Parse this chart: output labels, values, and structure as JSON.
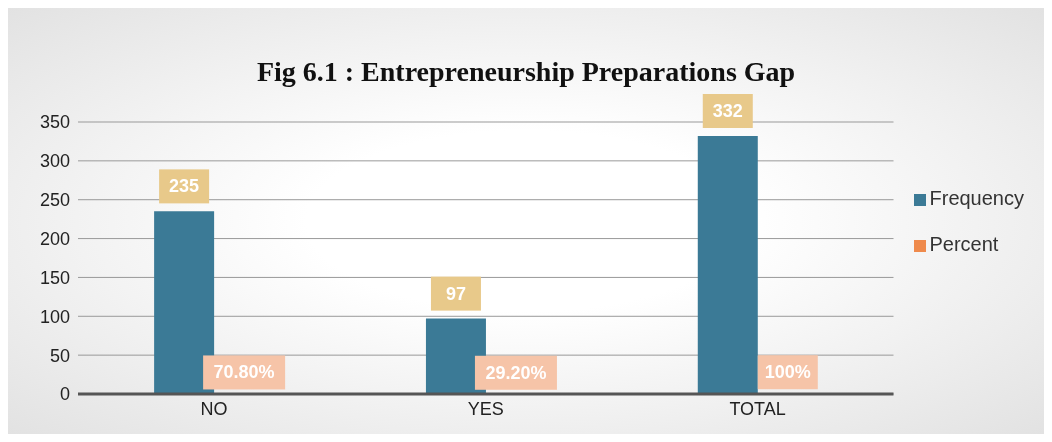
{
  "chart_data": {
    "type": "bar",
    "title": "Fig 6.1  : Entrepreneurship Preparations Gap",
    "categories": [
      "NO",
      "YES",
      "TOTAL"
    ],
    "series": [
      {
        "name": "Frequency",
        "color": "#3b7a96",
        "values": [
          235,
          97,
          332
        ],
        "value_labels": [
          "235",
          "97",
          "332"
        ]
      },
      {
        "name": "Percent",
        "color": "#ef8a4c",
        "values": [
          0.708,
          0.292,
          1
        ],
        "value_labels": [
          "70.80%",
          "29.20%",
          "100%"
        ]
      }
    ],
    "ylim": [
      0,
      350
    ],
    "yticks": [
      0,
      50,
      100,
      150,
      200,
      250,
      300,
      350
    ],
    "grid": "y",
    "legend": "right"
  }
}
